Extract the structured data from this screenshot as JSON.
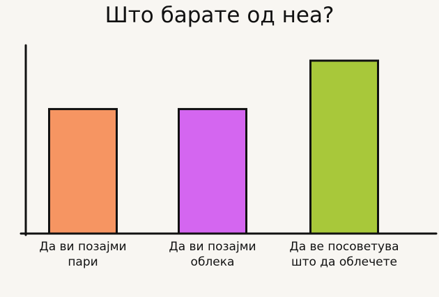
{
  "chart_data": {
    "type": "bar",
    "title": "Што барате од неа?",
    "categories": [
      "Да ви позајми пари",
      "Да ви позајми облека",
      "Да ве посоветува што да облечете"
    ],
    "values": [
      72,
      72,
      100
    ],
    "colors": [
      "#f69562",
      "#d466f0",
      "#a8c83a"
    ]
  }
}
